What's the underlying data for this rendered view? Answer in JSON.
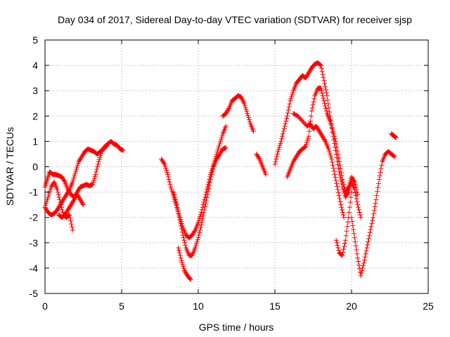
{
  "chart_data": {
    "type": "scatter",
    "title": "Day 034 of 2017, Sidereal Day-to-day VTEC variation (SDTVAR) for receiver sjsp",
    "xlabel": "GPS time / hours",
    "ylabel": "SDTVAR / TECUs",
    "xlim": [
      0,
      25
    ],
    "ylim": [
      -5,
      5
    ],
    "xticks": [
      "0",
      "5",
      "10",
      "15",
      "20",
      "25"
    ],
    "yticks": [
      "-5",
      "-4",
      "-3",
      "-2",
      "-1",
      "0",
      "1",
      "2",
      "3",
      "4",
      "5"
    ],
    "grid": true,
    "marker": "plus",
    "color": "#ff0000",
    "series": [
      {
        "x": [
          0.0,
          0.15,
          0.3,
          0.5,
          0.7,
          0.9,
          1.1,
          1.3,
          1.5,
          1.7,
          1.9,
          2.1,
          2.3,
          2.5,
          2.7,
          2.9,
          3.1,
          3.3,
          3.5,
          3.7,
          3.9,
          4.1,
          4.3,
          4.5,
          4.7,
          4.9,
          5.1
        ],
        "y": [
          -0.8,
          -0.5,
          -0.2,
          -0.3,
          -0.3,
          -0.35,
          -0.4,
          -0.6,
          -0.9,
          -1.1,
          -1.2,
          -1.0,
          -0.8,
          -0.75,
          -0.7,
          -0.75,
          -0.7,
          -0.3,
          0.2,
          0.6,
          0.8,
          0.9,
          1.0,
          0.9,
          0.85,
          0.7,
          0.65
        ]
      },
      {
        "x": [
          0.0,
          0.2,
          0.4,
          0.6,
          0.8,
          1.0,
          1.2,
          1.4,
          1.6,
          1.8,
          2.0,
          2.2,
          2.4,
          2.6,
          2.8,
          3.0,
          3.2,
          3.4,
          3.6,
          3.8,
          4.0
        ],
        "y": [
          -1.6,
          -1.8,
          -1.9,
          -1.85,
          -1.7,
          -1.5,
          -1.3,
          -1.1,
          -0.9,
          -0.6,
          -0.2,
          0.2,
          0.4,
          0.6,
          0.7,
          0.65,
          0.6,
          0.5,
          0.6,
          0.7,
          0.8
        ]
      },
      {
        "x": [
          0.0,
          0.2,
          0.4,
          0.6,
          0.8,
          1.0,
          1.2,
          1.4,
          1.6,
          1.8
        ],
        "y": [
          -1.6,
          -1.2,
          -0.8,
          -0.6,
          -0.9,
          -1.4,
          -1.9,
          -2.0,
          -1.9,
          -2.5
        ]
      },
      {
        "x": [
          0.9,
          1.1,
          1.3,
          1.5,
          1.7,
          1.9,
          2.1,
          2.3,
          2.5
        ],
        "y": [
          -1.9,
          -2.0,
          -1.9,
          -1.7,
          -1.5,
          -1.3,
          -1.1,
          -1.3,
          -1.5
        ]
      },
      {
        "x": [
          7.6,
          7.8,
          8.0,
          8.2,
          8.4,
          8.6,
          8.8,
          9.0,
          9.2,
          9.4,
          9.6,
          9.8,
          10.0,
          10.2,
          10.4,
          10.6,
          10.8,
          11.0,
          11.2,
          11.4,
          11.6,
          11.8
        ],
        "y": [
          0.3,
          0.1,
          -0.3,
          -0.8,
          -1.2,
          -1.6,
          -2.0,
          -2.4,
          -2.7,
          -2.8,
          -2.7,
          -2.5,
          -2.2,
          -1.8,
          -1.3,
          -0.8,
          -0.3,
          0.1,
          0.5,
          0.9,
          1.3,
          1.6
        ]
      },
      {
        "x": [
          8.4,
          8.6,
          8.8,
          9.0,
          9.2,
          9.4,
          9.6,
          9.8,
          10.0,
          10.2,
          10.4,
          10.6,
          10.8,
          11.0,
          11.2,
          11.4,
          11.6,
          11.8
        ],
        "y": [
          -1.0,
          -1.5,
          -2.1,
          -2.7,
          -3.2,
          -3.5,
          -3.5,
          -3.2,
          -2.8,
          -2.3,
          -1.7,
          -1.1,
          -0.5,
          0.0,
          0.3,
          0.5,
          0.7,
          0.75
        ]
      },
      {
        "x": [
          8.7,
          8.9,
          9.1,
          9.3,
          9.5
        ],
        "y": [
          -3.2,
          -3.7,
          -4.1,
          -4.3,
          -4.45
        ]
      },
      {
        "x": [
          11.6,
          11.8,
          12.0,
          12.2,
          12.4,
          12.6,
          12.8,
          13.0,
          13.2,
          13.4,
          13.6
        ],
        "y": [
          2.0,
          2.1,
          2.3,
          2.6,
          2.7,
          2.8,
          2.75,
          2.5,
          2.1,
          1.7,
          1.4
        ]
      },
      {
        "x": [
          13.8,
          14.0,
          14.2,
          14.4
        ],
        "y": [
          0.5,
          0.3,
          0.0,
          -0.3
        ]
      },
      {
        "x": [
          15.0,
          15.2,
          15.4,
          15.6,
          15.8,
          16.0,
          16.2,
          16.4,
          16.6,
          16.8,
          17.0,
          17.2,
          17.4,
          17.6,
          17.8,
          18.0,
          18.2,
          18.4,
          18.6,
          18.8,
          19.0,
          19.2,
          19.4,
          19.6,
          19.8,
          20.0,
          20.2,
          20.4,
          20.6
        ],
        "y": [
          0.1,
          0.6,
          1.0,
          1.5,
          2.0,
          2.6,
          3.0,
          3.3,
          3.45,
          3.6,
          3.5,
          3.7,
          3.9,
          4.05,
          4.1,
          4.0,
          3.4,
          2.8,
          2.0,
          1.2,
          0.5,
          -0.2,
          -0.8,
          -1.2,
          -1.0,
          -0.6,
          -0.9,
          -1.5,
          -2.0
        ]
      },
      {
        "x": [
          15.8,
          16.0,
          16.2,
          16.4,
          16.6,
          16.8,
          17.0,
          17.2,
          17.4,
          17.6,
          17.8,
          18.0,
          18.2,
          18.4,
          18.6,
          18.8,
          19.0,
          19.2,
          19.4,
          19.6,
          19.8,
          20.0,
          20.2,
          20.4
        ],
        "y": [
          -0.4,
          -0.1,
          0.2,
          0.4,
          0.6,
          0.7,
          0.8,
          1.2,
          2.2,
          2.8,
          3.1,
          3.1,
          2.6,
          2.1,
          1.8,
          1.4,
          0.9,
          0.2,
          -0.5,
          -1.0,
          -0.8,
          -0.4,
          -0.6,
          -1.1
        ]
      },
      {
        "x": [
          16.2,
          16.5,
          16.8,
          17.1,
          17.3,
          17.5,
          17.7,
          17.9,
          18.1,
          18.3,
          18.5,
          18.7,
          18.9,
          19.1,
          19.3,
          19.5
        ],
        "y": [
          2.1,
          2.0,
          1.8,
          1.6,
          1.7,
          1.5,
          1.6,
          1.4,
          1.2,
          1.0,
          0.7,
          0.3,
          -0.3,
          -0.9,
          -1.5,
          -2.0
        ]
      },
      {
        "x": [
          19.0,
          19.2,
          19.4,
          19.6,
          19.8,
          20.0
        ],
        "y": [
          -2.9,
          -3.4,
          -3.5,
          -2.9,
          -2.0,
          -1.0
        ]
      },
      {
        "x": [
          20.0,
          20.2,
          20.4,
          20.6,
          20.8,
          21.0,
          21.2,
          21.4,
          21.6,
          21.8,
          22.0,
          22.2,
          22.4,
          22.6,
          22.8
        ],
        "y": [
          -2.0,
          -2.8,
          -3.6,
          -4.3,
          -3.8,
          -3.2,
          -2.6,
          -2.0,
          -1.3,
          -0.5,
          0.2,
          0.5,
          0.6,
          0.5,
          0.4
        ]
      },
      {
        "x": [
          22.6,
          22.7,
          22.8,
          22.9
        ],
        "y": [
          1.3,
          1.25,
          1.2,
          1.15
        ]
      }
    ]
  }
}
